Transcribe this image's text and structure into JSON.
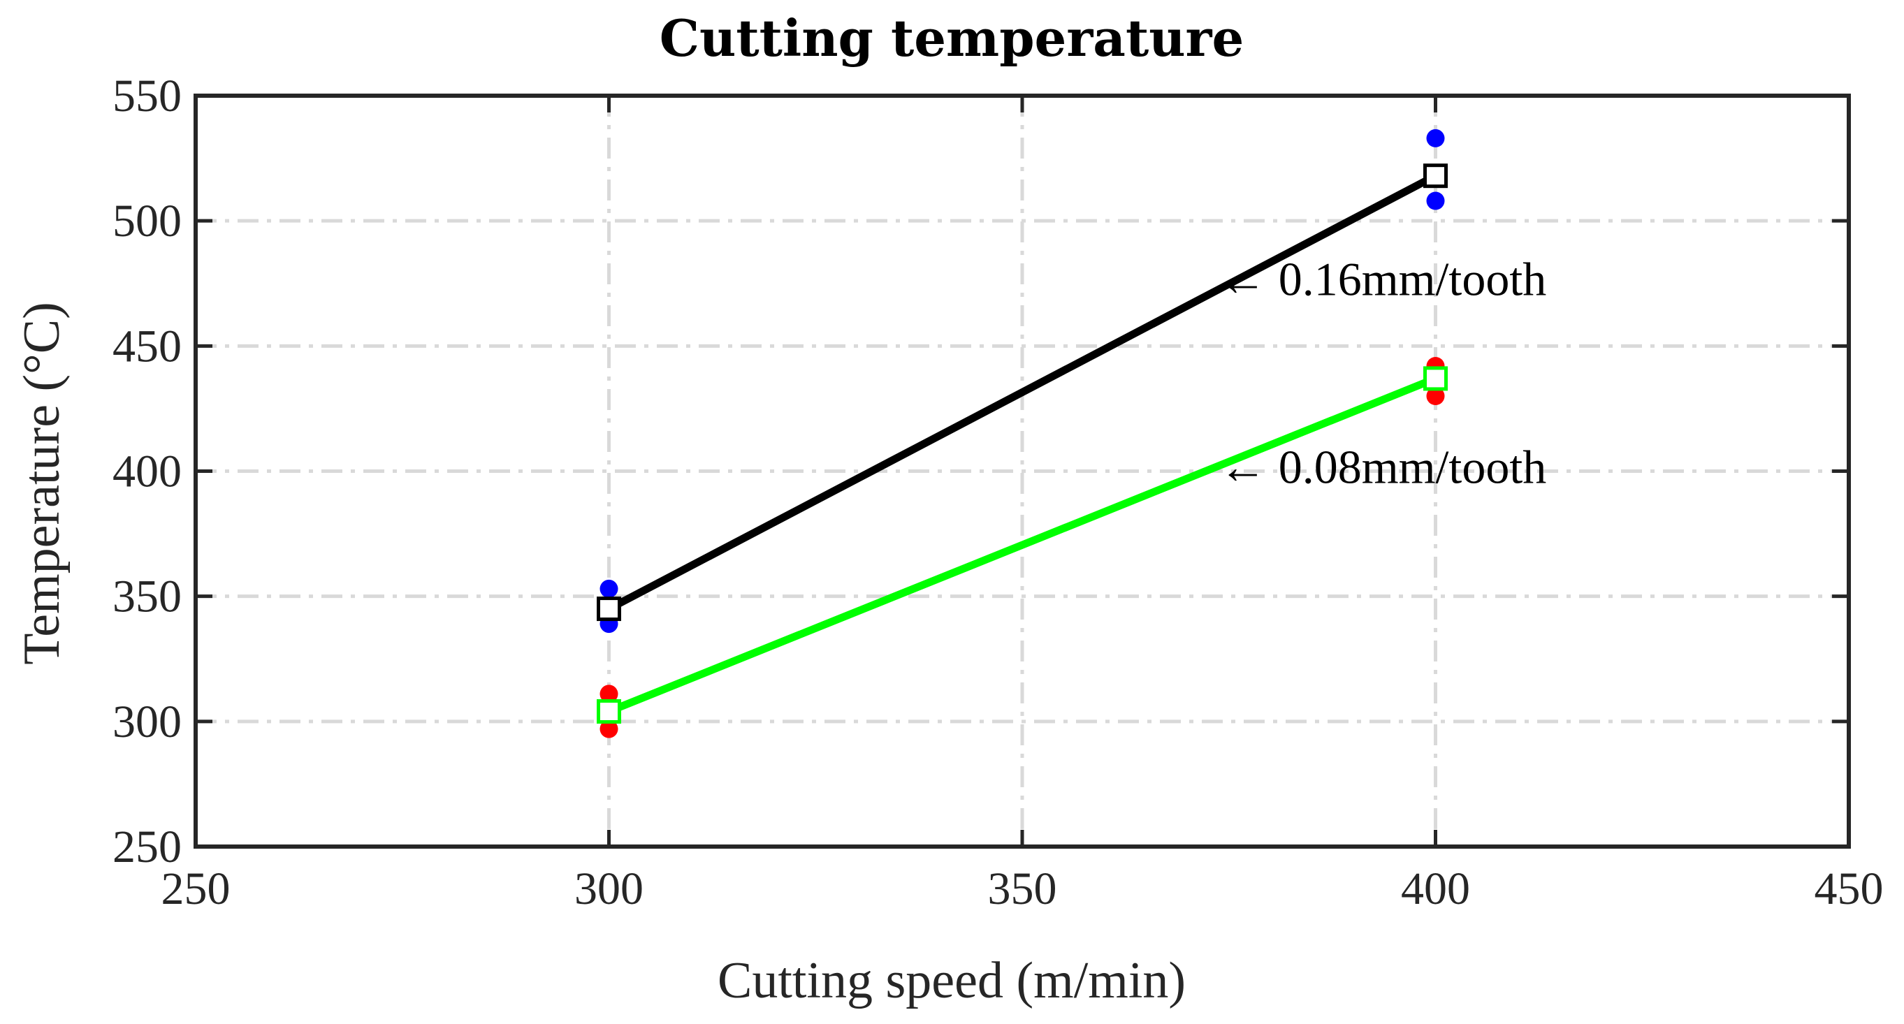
{
  "chart_data": {
    "type": "line",
    "title": "Cutting temperature",
    "xlabel": "Cutting speed (m/min)",
    "ylabel": "Temperature (°C)",
    "xlim": [
      250,
      450
    ],
    "ylim": [
      250,
      550
    ],
    "xticks": [
      250,
      300,
      350,
      400,
      450
    ],
    "yticks": [
      250,
      300,
      350,
      400,
      450,
      500,
      550
    ],
    "grid": true,
    "series": [
      {
        "name": "0.16mm/tooth",
        "color": "#000000",
        "marker": "square",
        "x": [
          300,
          400
        ],
        "values": [
          345,
          518
        ],
        "scatter_color": "#0000ff",
        "scatter_points": [
          [
            300,
            353
          ],
          [
            300,
            339
          ],
          [
            400,
            533
          ],
          [
            400,
            508
          ]
        ]
      },
      {
        "name": "0.08mm/tooth",
        "color": "#00ff00",
        "marker": "square",
        "x": [
          300,
          400
        ],
        "values": [
          304,
          437
        ],
        "scatter_color": "#ff0000",
        "scatter_points": [
          [
            300,
            311
          ],
          [
            300,
            297
          ],
          [
            400,
            442
          ],
          [
            400,
            430
          ]
        ]
      }
    ],
    "annotations": [
      {
        "text": "← 0.16mm/tooth",
        "x": 375,
        "y": 477
      },
      {
        "text": "← 0.08mm/tooth",
        "x": 375,
        "y": 402
      }
    ]
  }
}
